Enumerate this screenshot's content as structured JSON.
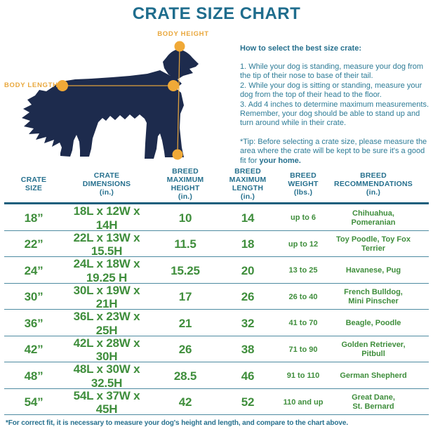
{
  "title": "CRATE SIZE CHART",
  "diagram": {
    "body_height_label": "BODY HEIGHT",
    "body_length_label": "BODY LENGTH"
  },
  "instructions": {
    "heading": "How to select the best size crate:",
    "steps": [
      "1. While your dog is standing, measure your dog from the tip of their nose to base of their tail.",
      "2. While your dog is sitting or standing, measure your dog from the top of their head to the floor.",
      "3. Add 4 inches to determine maximum measurements. Remember, your dog should be able to stand up and turn around while in their crate."
    ],
    "tip": "*Tip: Before selecting a crate size, please measure the area where the crate will be kept to be sure it's a good fit for",
    "tip_bold": "your home."
  },
  "table": {
    "header_lines": [
      [
        "CRATE",
        "SIZE"
      ],
      [
        "CRATE",
        "DIMENSIONS",
        "(in.)"
      ],
      [
        "BREED",
        "MAXIMUM",
        "HEIGHT",
        "(in.)"
      ],
      [
        "BREED",
        "MAXIMUM",
        "LENGTH",
        "(in.)"
      ],
      [
        "BREED",
        "WEIGHT",
        "(lbs.)"
      ],
      [
        "BREED",
        "RECOMMENDATIONS",
        "(in.)"
      ]
    ]
  },
  "chart_data": {
    "type": "table",
    "title": "CRATE SIZE CHART",
    "columns": [
      "CRATE SIZE",
      "CRATE DIMENSIONS (in.)",
      "BREED MAXIMUM HEIGHT (in.)",
      "BREED MAXIMUM LENGTH (in.)",
      "BREED WEIGHT (lbs.)",
      "BREED RECOMMENDATIONS (in.)"
    ],
    "rows": [
      [
        "18”",
        "18L x 12W x 14H",
        "10",
        "14",
        "up to 6",
        [
          "Chihuahua, Pomeranian"
        ]
      ],
      [
        "22”",
        "22L x 13W x 15.5H",
        "11.5",
        "18",
        "up to 12",
        [
          "Toy Poodle, Toy Fox Terrier"
        ]
      ],
      [
        "24”",
        "24L x 18W x 19.25 H",
        "15.25",
        "20",
        "13 to 25",
        [
          "Havanese, Pug"
        ]
      ],
      [
        "30”",
        "30L x 19W x 21H",
        "17",
        "26",
        "26 to 40",
        [
          "French Bulldog,",
          "Mini Pinscher"
        ]
      ],
      [
        "36”",
        "36L x 23W x 25H",
        "21",
        "32",
        "41 to 70",
        [
          "Beagle, Poodle"
        ]
      ],
      [
        "42”",
        "42L x 28W x 30H",
        "26",
        "38",
        "71 to 90",
        [
          "Golden Retriever, Pitbull"
        ]
      ],
      [
        "48”",
        "48L x 30W x 32.5H",
        "28.5",
        "46",
        "91 to 110",
        [
          "German Shepherd"
        ]
      ],
      [
        "54”",
        "54L x 37W x 45H",
        "42",
        "52",
        "110 and up",
        [
          "Great Dane,",
          "St. Bernard"
        ]
      ]
    ]
  },
  "footer": "*For correct fit, it is necessary to measure your dog's height and length, and compare to the chart above.",
  "colors": {
    "teal": "#26708e",
    "green": "#3f8e3c",
    "gold": "#e9a73c",
    "navy": "#1d2b4d"
  }
}
